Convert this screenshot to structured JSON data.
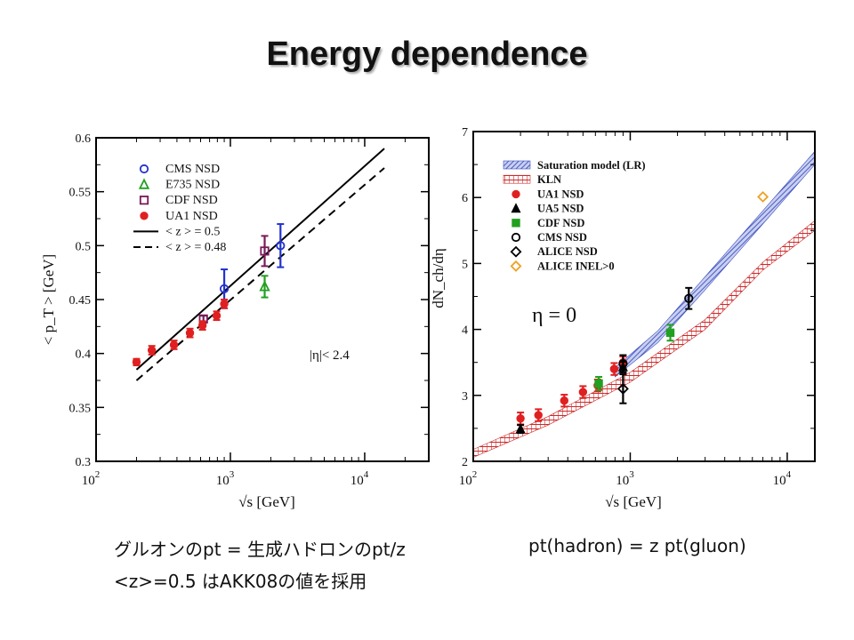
{
  "slide": {
    "title": "Energy dependence",
    "caption_line1": "グルオンのpt = 生成ハドロンのpt/z",
    "caption_right": "pt(hadron) = z pt(gluon)",
    "caption_line2": "<z>=0.5 はAKK08の値を採用"
  },
  "chart_data": [
    {
      "type": "scatter",
      "xscale": "log",
      "xlim": [
        100,
        30000
      ],
      "ylim": [
        0.3,
        0.6
      ],
      "xlabel": "√s  [GeV]",
      "ylabel": "< p_T > [GeV]",
      "yticks": [
        "0.3",
        "0.35",
        "0.4",
        "0.45",
        "0.5",
        "0.55",
        "0.6"
      ],
      "xticks": [
        {
          "v": 100,
          "base": "10",
          "exp": "2"
        },
        {
          "v": 1000,
          "base": "10",
          "exp": "3"
        },
        {
          "v": 10000,
          "base": "10",
          "exp": "4"
        }
      ],
      "annotation": "|η|< 2.4",
      "legend_position": "top-left",
      "series": [
        {
          "name": "CMS NSD",
          "marker": "circle-open",
          "color": "#2233cc",
          "points": [
            {
              "x": 900,
              "y": 0.46,
              "err": 0.018
            },
            {
              "x": 2360,
              "y": 0.5,
              "err": 0.02
            }
          ]
        },
        {
          "name": "E735 NSD",
          "marker": "triangle-open",
          "color": "#22a022",
          "points": [
            {
              "x": 1800,
              "y": 0.462,
              "err": 0.01
            }
          ]
        },
        {
          "name": "CDF NSD",
          "marker": "square-open",
          "color": "#7a1a5a",
          "points": [
            {
              "x": 630,
              "y": 0.432,
              "err": 0.003
            },
            {
              "x": 1800,
              "y": 0.495,
              "err": 0.014
            }
          ]
        },
        {
          "name": "UA1 NSD",
          "marker": "circle-filled",
          "color": "#e02020",
          "points": [
            {
              "x": 200,
              "y": 0.392,
              "err": 0.003
            },
            {
              "x": 260,
              "y": 0.403,
              "err": 0.004
            },
            {
              "x": 380,
              "y": 0.408,
              "err": 0.004
            },
            {
              "x": 500,
              "y": 0.419,
              "err": 0.004
            },
            {
              "x": 620,
              "y": 0.426,
              "err": 0.004
            },
            {
              "x": 790,
              "y": 0.435,
              "err": 0.004
            },
            {
              "x": 900,
              "y": 0.446,
              "err": 0.004
            }
          ]
        }
      ],
      "lines": [
        {
          "name": "< z > = 0.5",
          "style": "solid",
          "points": [
            [
              200,
              0.385
            ],
            [
              14000,
              0.59
            ]
          ]
        },
        {
          "name": "< z > = 0.48",
          "style": "dashed",
          "points": [
            [
              200,
              0.375
            ],
            [
              14000,
              0.572
            ]
          ]
        }
      ]
    },
    {
      "type": "scatter",
      "xscale": "log",
      "xlim": [
        100,
        15000
      ],
      "ylim": [
        2,
        7
      ],
      "xlabel": "√s  [GeV]",
      "ylabel": "dN_ch/dη",
      "yticks": [
        "2",
        "3",
        "4",
        "5",
        "6",
        "7"
      ],
      "xticks": [
        {
          "v": 100,
          "base": "10",
          "exp": "2"
        },
        {
          "v": 1000,
          "base": "10",
          "exp": "3"
        },
        {
          "v": 10000,
          "base": "10",
          "exp": "4"
        }
      ],
      "annotation": "η = 0",
      "legend_position": "top-left",
      "bands": [
        {
          "name": "Saturation model (LR)",
          "color": "#3a4fc0",
          "lower": [
            [
              800,
              3.28
            ],
            [
              1500,
              3.8
            ],
            [
              3000,
              4.6
            ],
            [
              7000,
              5.6
            ],
            [
              15000,
              6.5
            ]
          ],
          "upper": [
            [
              800,
              3.42
            ],
            [
              1500,
              3.98
            ],
            [
              3000,
              4.8
            ],
            [
              7000,
              5.8
            ],
            [
              15000,
              6.7
            ]
          ]
        },
        {
          "name": "KLN",
          "color": "#cc2a2a",
          "lower": [
            [
              100,
              2.06
            ],
            [
              300,
              2.55
            ],
            [
              1000,
              3.2
            ],
            [
              3000,
              4.0
            ],
            [
              7000,
              4.9
            ],
            [
              15000,
              5.5
            ]
          ],
          "upper": [
            [
              100,
              2.18
            ],
            [
              300,
              2.68
            ],
            [
              1000,
              3.35
            ],
            [
              3000,
              4.15
            ],
            [
              7000,
              5.02
            ],
            [
              15000,
              5.65
            ]
          ]
        }
      ],
      "series": [
        {
          "name": "UA1 NSD",
          "marker": "circle-filled",
          "color": "#e02020",
          "points": [
            {
              "x": 200,
              "y": 2.65,
              "err": 0.09
            },
            {
              "x": 260,
              "y": 2.7,
              "err": 0.09
            },
            {
              "x": 380,
              "y": 2.92,
              "err": 0.09
            },
            {
              "x": 500,
              "y": 3.05,
              "err": 0.09
            },
            {
              "x": 620,
              "y": 3.15,
              "err": 0.09
            },
            {
              "x": 790,
              "y": 3.4,
              "err": 0.09
            },
            {
              "x": 900,
              "y": 3.5,
              "err": 0.09
            }
          ]
        },
        {
          "name": "UA5 NSD",
          "marker": "triangle-filled",
          "color": "#000000",
          "points": [
            {
              "x": 200,
              "y": 2.49,
              "err": 0.06
            },
            {
              "x": 900,
              "y": 3.43,
              "err": 0.08
            }
          ]
        },
        {
          "name": "CDF NSD",
          "marker": "square-filled",
          "color": "#22a022",
          "points": [
            {
              "x": 630,
              "y": 3.18,
              "err": 0.1
            },
            {
              "x": 1800,
              "y": 3.95,
              "err": 0.12
            }
          ]
        },
        {
          "name": "CMS NSD",
          "marker": "circle-open",
          "color": "#000000",
          "points": [
            {
              "x": 900,
              "y": 3.48,
              "err": 0.13
            },
            {
              "x": 2360,
              "y": 4.47,
              "err": 0.16
            }
          ]
        },
        {
          "name": "ALICE NSD",
          "marker": "diamond-open",
          "color": "#000000",
          "points": [
            {
              "x": 900,
              "y": 3.1,
              "err": 0.22
            }
          ]
        },
        {
          "name": "ALICE INEL>0",
          "marker": "diamond-open",
          "color": "#f0a020",
          "points": [
            {
              "x": 7000,
              "y": 6.01,
              "err": 0
            }
          ]
        }
      ]
    }
  ]
}
